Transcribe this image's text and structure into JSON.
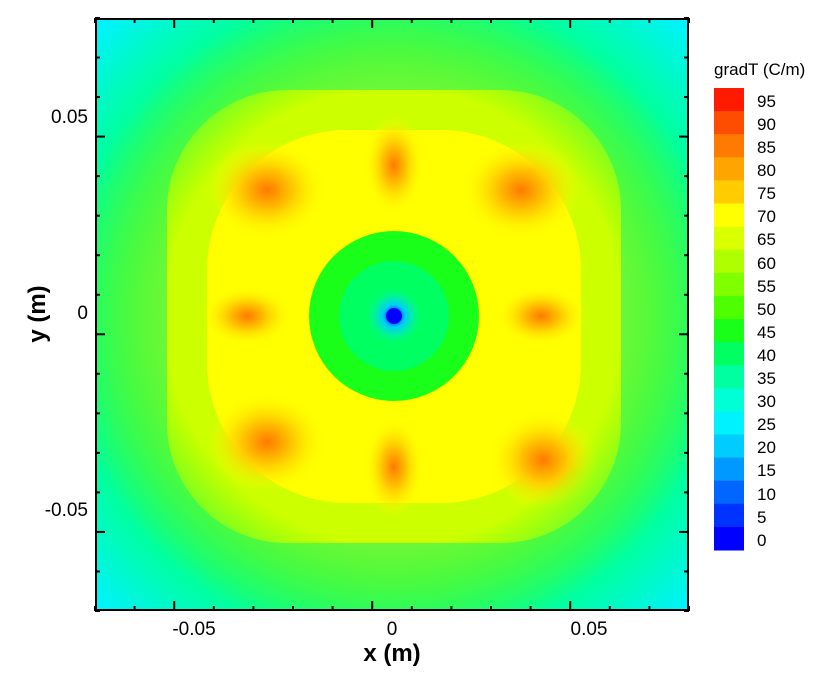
{
  "chart_data": {
    "type": "heatmap",
    "title": "",
    "xlabel": "x (m)",
    "ylabel": "y (m)",
    "xlim": [
      -0.075,
      0.075
    ],
    "ylim": [
      -0.075,
      0.075
    ],
    "x_ticks": [
      "-0.05",
      "0",
      "0.05"
    ],
    "y_ticks": [
      "0.05",
      "0",
      "-0.05"
    ],
    "x_tick_values": [
      -0.05,
      0,
      0.05
    ],
    "y_tick_values": [
      0.05,
      0,
      -0.05
    ],
    "colorbar": {
      "title": "gradT (C/m)",
      "levels": [
        95,
        90,
        85,
        80,
        75,
        70,
        65,
        60,
        55,
        50,
        45,
        40,
        35,
        30,
        25,
        20,
        15,
        10,
        5,
        0
      ],
      "level_labels": [
        "95",
        "90",
        "85",
        "80",
        "75",
        "70",
        "65",
        "60",
        "55",
        "50",
        "45",
        "40",
        "35",
        "30",
        "25",
        "20",
        "15",
        "10",
        "5",
        "0"
      ],
      "colors": [
        "#ff1a00",
        "#ff4d00",
        "#ff7a00",
        "#ffa500",
        "#ffcc00",
        "#ffff00",
        "#d9ff00",
        "#b0ff00",
        "#80ff00",
        "#4dff00",
        "#1aff1a",
        "#00ff60",
        "#00ffa0",
        "#00ffd4",
        "#00f2ff",
        "#00ccff",
        "#0099ff",
        "#0066ff",
        "#0033ff",
        "#0000ff"
      ]
    },
    "legend_position": "right"
  }
}
